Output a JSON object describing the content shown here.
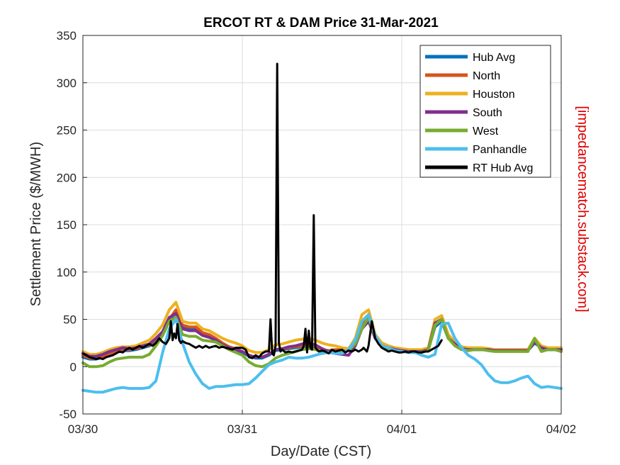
{
  "chart_data": {
    "type": "line",
    "title": "ERCOT RT & DAM Price 31-Mar-2021",
    "xlabel": "Day/Date (CST)",
    "ylabel": "Settlement Price ($/MWH)",
    "watermark": "[impedancematch.substack.com]",
    "xlim": [
      0,
      72
    ],
    "ylim": [
      -50,
      350
    ],
    "yticks": [
      -50,
      0,
      50,
      100,
      150,
      200,
      250,
      300,
      350
    ],
    "xticks": [
      {
        "x": 0,
        "label": "03/30"
      },
      {
        "x": 24,
        "label": "03/31"
      },
      {
        "x": 48,
        "label": "04/01"
      },
      {
        "x": 72,
        "label": "04/02"
      }
    ],
    "grid": true,
    "legend_position": "top-right",
    "series": [
      {
        "name": "Hub Avg",
        "color": "#0072BD",
        "width": 4,
        "x": [
          0,
          1,
          2,
          3,
          4,
          5,
          6,
          7,
          8,
          9,
          10,
          11,
          12,
          13,
          14,
          15,
          16,
          17,
          18,
          19,
          20,
          21,
          22,
          23,
          24,
          25,
          26,
          27,
          28,
          29,
          30,
          31,
          32,
          33,
          34,
          35,
          36,
          37,
          38,
          39,
          40,
          41,
          42,
          43,
          44,
          45,
          46,
          47,
          48,
          49,
          50,
          51,
          52,
          53,
          54,
          55,
          56,
          57,
          58,
          59,
          60,
          61,
          62,
          63,
          64,
          65,
          66,
          67,
          68,
          69,
          70,
          71,
          72
        ],
        "y": [
          10,
          8,
          8,
          10,
          13,
          15,
          17,
          17,
          18,
          20,
          22,
          27,
          33,
          48,
          58,
          42,
          40,
          40,
          34,
          32,
          28,
          24,
          20,
          18,
          15,
          11,
          9,
          9,
          12,
          17,
          18,
          19,
          20,
          21,
          22,
          20,
          17,
          16,
          17,
          17,
          18,
          25,
          42,
          50,
          30,
          22,
          20,
          18,
          17,
          16,
          16,
          16,
          18,
          42,
          48,
          30,
          24,
          19,
          18,
          18,
          18,
          18,
          17,
          17,
          17,
          17,
          17,
          17,
          25,
          20,
          18,
          18,
          18
        ]
      },
      {
        "name": "North",
        "color": "#D95319",
        "width": 4,
        "x": [
          0,
          1,
          2,
          3,
          4,
          5,
          6,
          7,
          8,
          9,
          10,
          11,
          12,
          13,
          14,
          15,
          16,
          17,
          18,
          19,
          20,
          21,
          22,
          23,
          24,
          25,
          26,
          27,
          28,
          29,
          30,
          31,
          32,
          33,
          34,
          35,
          36,
          37,
          38,
          39,
          40,
          41,
          42,
          43,
          44,
          45,
          46,
          47,
          48,
          49,
          50,
          51,
          52,
          53,
          54,
          55,
          56,
          57,
          58,
          59,
          60,
          61,
          62,
          63,
          64,
          65,
          66,
          67,
          68,
          69,
          70,
          71,
          72
        ],
        "y": [
          12,
          9,
          9,
          11,
          14,
          16,
          18,
          18,
          19,
          21,
          23,
          29,
          35,
          50,
          60,
          44,
          42,
          42,
          36,
          34,
          30,
          25,
          21,
          19,
          16,
          12,
          10,
          10,
          13,
          18,
          19,
          20,
          21,
          22,
          23,
          21,
          18,
          17,
          18,
          18,
          19,
          26,
          44,
          52,
          31,
          23,
          21,
          19,
          18,
          17,
          17,
          17,
          19,
          44,
          50,
          31,
          25,
          20,
          19,
          19,
          19,
          19,
          18,
          18,
          18,
          18,
          18,
          18,
          27,
          21,
          19,
          19,
          19
        ]
      },
      {
        "name": "Houston",
        "color": "#EDB120",
        "width": 4,
        "x": [
          0,
          1,
          2,
          3,
          4,
          5,
          6,
          7,
          8,
          9,
          10,
          11,
          12,
          13,
          14,
          15,
          16,
          17,
          18,
          19,
          20,
          21,
          22,
          23,
          24,
          25,
          26,
          27,
          28,
          29,
          30,
          31,
          32,
          33,
          34,
          35,
          36,
          37,
          38,
          39,
          40,
          41,
          42,
          43,
          44,
          45,
          46,
          47,
          48,
          49,
          50,
          51,
          52,
          53,
          54,
          55,
          56,
          57,
          58,
          59,
          60,
          61,
          62,
          63,
          64,
          65,
          66,
          67,
          68,
          69,
          70,
          71,
          72
        ],
        "y": [
          16,
          13,
          13,
          15,
          18,
          20,
          21,
          21,
          22,
          25,
          28,
          35,
          44,
          60,
          68,
          48,
          46,
          46,
          40,
          38,
          34,
          30,
          27,
          25,
          22,
          17,
          15,
          15,
          18,
          23,
          24,
          26,
          28,
          29,
          30,
          28,
          25,
          23,
          22,
          20,
          19,
          30,
          55,
          60,
          34,
          25,
          22,
          20,
          19,
          18,
          18,
          18,
          20,
          50,
          54,
          34,
          26,
          21,
          20,
          20,
          20,
          19,
          18,
          18,
          18,
          18,
          18,
          18,
          30,
          22,
          20,
          20,
          20
        ]
      },
      {
        "name": "South",
        "color": "#7E2F8E",
        "width": 4,
        "x": [
          0,
          1,
          2,
          3,
          4,
          5,
          6,
          7,
          8,
          9,
          10,
          11,
          12,
          13,
          14,
          15,
          16,
          17,
          18,
          19,
          20,
          21,
          22,
          23,
          24,
          25,
          26,
          27,
          28,
          29,
          30,
          31,
          32,
          33,
          34,
          35,
          36,
          37,
          38,
          39,
          40,
          41,
          42,
          43,
          44,
          45,
          46,
          47,
          48,
          49,
          50,
          51,
          52,
          53,
          54,
          55,
          56,
          57,
          58,
          59,
          60,
          61,
          62,
          63,
          64,
          65,
          66,
          67,
          68,
          69,
          70,
          71,
          72
        ],
        "y": [
          14,
          11,
          11,
          13,
          16,
          18,
          20,
          19,
          20,
          22,
          24,
          30,
          37,
          52,
          56,
          40,
          38,
          38,
          33,
          31,
          28,
          23,
          20,
          18,
          16,
          12,
          10,
          10,
          13,
          18,
          19,
          21,
          22,
          24,
          25,
          23,
          19,
          16,
          14,
          13,
          12,
          22,
          40,
          48,
          30,
          22,
          20,
          18,
          17,
          16,
          16,
          16,
          18,
          46,
          50,
          30,
          24,
          19,
          18,
          18,
          18,
          18,
          17,
          17,
          17,
          17,
          17,
          17,
          26,
          20,
          18,
          18,
          18
        ]
      },
      {
        "name": "West",
        "color": "#77AC30",
        "width": 4,
        "x": [
          0,
          1,
          2,
          3,
          4,
          5,
          6,
          7,
          8,
          9,
          10,
          11,
          12,
          13,
          14,
          15,
          16,
          17,
          18,
          19,
          20,
          21,
          22,
          23,
          24,
          25,
          26,
          27,
          28,
          29,
          30,
          31,
          32,
          33,
          34,
          35,
          36,
          37,
          38,
          39,
          40,
          41,
          42,
          43,
          44,
          45,
          46,
          47,
          48,
          49,
          50,
          51,
          52,
          53,
          54,
          55,
          56,
          57,
          58,
          59,
          60,
          61,
          62,
          63,
          64,
          65,
          66,
          67,
          68,
          69,
          70,
          71,
          72
        ],
        "y": [
          4,
          0,
          0,
          1,
          5,
          8,
          9,
          10,
          10,
          10,
          13,
          22,
          33,
          48,
          52,
          34,
          32,
          32,
          28,
          27,
          26,
          22,
          18,
          15,
          12,
          5,
          1,
          0,
          3,
          9,
          12,
          14,
          16,
          18,
          19,
          18,
          16,
          15,
          15,
          16,
          17,
          24,
          40,
          52,
          32,
          22,
          19,
          17,
          16,
          15,
          15,
          15,
          17,
          44,
          50,
          30,
          22,
          18,
          17,
          18,
          18,
          17,
          16,
          16,
          16,
          16,
          16,
          16,
          30,
          16,
          18,
          18,
          16
        ]
      },
      {
        "name": "Panhandle",
        "color": "#4DBEEE",
        "width": 4,
        "x": [
          0,
          1,
          2,
          3,
          4,
          5,
          6,
          7,
          8,
          9,
          10,
          11,
          12,
          13,
          14,
          15,
          16,
          17,
          18,
          19,
          20,
          21,
          22,
          23,
          24,
          25,
          26,
          27,
          28,
          29,
          30,
          31,
          32,
          33,
          34,
          35,
          36,
          37,
          38,
          39,
          40,
          41,
          42,
          43,
          44,
          45,
          46,
          47,
          48,
          49,
          50,
          51,
          52,
          53,
          54,
          55,
          56,
          57,
          58,
          59,
          60,
          61,
          62,
          63,
          64,
          65,
          66,
          67,
          68,
          69,
          70,
          71,
          72
        ],
        "y": [
          -25,
          -26,
          -27,
          -27,
          -25,
          -23,
          -22,
          -23,
          -23,
          -23,
          -22,
          -15,
          15,
          40,
          50,
          25,
          5,
          -8,
          -18,
          -23,
          -21,
          -21,
          -20,
          -19,
          -19,
          -18,
          -12,
          -5,
          2,
          5,
          7,
          10,
          9,
          9,
          10,
          12,
          14,
          15,
          14,
          14,
          18,
          28,
          48,
          55,
          33,
          22,
          20,
          17,
          16,
          15,
          15,
          12,
          10,
          13,
          45,
          46,
          30,
          20,
          12,
          8,
          2,
          -8,
          -15,
          -17,
          -17,
          -15,
          -12,
          -10,
          -18,
          -22,
          -21,
          -22,
          -23
        ]
      },
      {
        "name": "RT Hub Avg",
        "color": "#000000",
        "width": 3,
        "x": [
          0,
          0.5,
          1,
          1.5,
          2,
          2.5,
          3,
          3.5,
          4,
          4.5,
          5,
          5.5,
          6,
          6.5,
          7,
          7.5,
          8,
          8.5,
          9,
          9.5,
          10,
          10.5,
          11,
          11.5,
          12,
          12.5,
          13,
          13.25,
          13.5,
          13.75,
          14,
          14.25,
          14.5,
          14.75,
          15,
          15.5,
          16,
          16.5,
          17,
          17.5,
          18,
          18.5,
          19,
          19.5,
          20,
          20.5,
          21,
          21.5,
          22,
          22.5,
          23,
          23.5,
          24,
          24.5,
          25,
          25.5,
          26,
          26.5,
          27,
          27.5,
          28,
          28.25,
          28.5,
          28.75,
          29,
          29.25,
          29.5,
          29.75,
          30,
          30.5,
          31,
          31.5,
          32,
          32.5,
          33,
          33.25,
          33.5,
          33.75,
          34,
          34.25,
          34.5,
          34.75,
          35,
          35.5,
          36,
          36.5,
          37,
          37.5,
          38,
          38.5,
          39,
          39.5,
          40,
          40.5,
          41,
          41.5,
          42,
          42.25,
          42.5,
          42.75,
          43,
          43.5,
          44,
          44.5,
          45,
          45.5,
          46,
          46.5,
          47,
          47.5,
          48,
          48.5,
          49,
          49.5,
          50,
          50.5,
          51,
          51.5,
          52,
          52.5,
          53,
          53.5,
          54
        ],
        "y": [
          14,
          12,
          10,
          9,
          8,
          9,
          8,
          10,
          11,
          12,
          14,
          16,
          15,
          18,
          20,
          18,
          20,
          22,
          20,
          22,
          24,
          22,
          25,
          30,
          26,
          24,
          30,
          48,
          28,
          35,
          30,
          45,
          28,
          25,
          27,
          25,
          24,
          22,
          20,
          22,
          20,
          22,
          20,
          21,
          22,
          20,
          21,
          20,
          19,
          18,
          20,
          20,
          20,
          18,
          10,
          9,
          12,
          10,
          14,
          16,
          16,
          50,
          14,
          12,
          22,
          320,
          25,
          16,
          18,
          15,
          16,
          15,
          16,
          17,
          18,
          22,
          40,
          15,
          38,
          20,
          18,
          160,
          20,
          16,
          17,
          16,
          14,
          18,
          16,
          17,
          18,
          15,
          17,
          16,
          18,
          16,
          18,
          20,
          18,
          16,
          22,
          48,
          30,
          24,
          20,
          18,
          16,
          17,
          16,
          15,
          15,
          16,
          15,
          16,
          16,
          15,
          15,
          16,
          16,
          18,
          20,
          22,
          28
        ]
      }
    ]
  }
}
